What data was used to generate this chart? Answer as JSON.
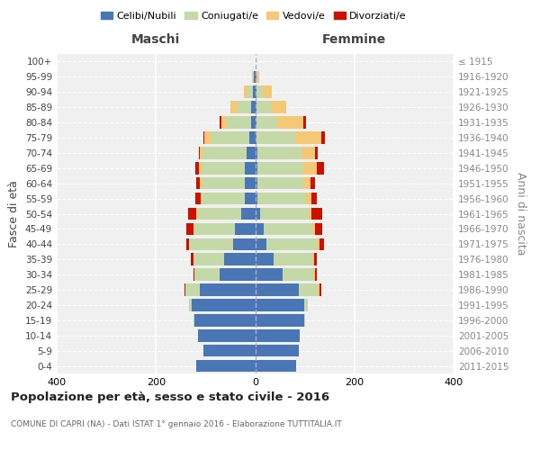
{
  "age_groups": [
    "0-4",
    "5-9",
    "10-14",
    "15-19",
    "20-24",
    "25-29",
    "30-34",
    "35-39",
    "40-44",
    "45-49",
    "50-54",
    "55-59",
    "60-64",
    "65-69",
    "70-74",
    "75-79",
    "80-84",
    "85-89",
    "90-94",
    "95-99",
    "100+"
  ],
  "birth_years": [
    "2011-2015",
    "2006-2010",
    "2001-2005",
    "1996-2000",
    "1991-1995",
    "1986-1990",
    "1981-1985",
    "1976-1980",
    "1971-1975",
    "1966-1970",
    "1961-1965",
    "1956-1960",
    "1951-1955",
    "1946-1950",
    "1941-1945",
    "1936-1940",
    "1931-1935",
    "1926-1930",
    "1921-1925",
    "1916-1920",
    "≤ 1915"
  ],
  "maschi": {
    "celibi": [
      118,
      105,
      115,
      122,
      128,
      112,
      72,
      62,
      45,
      40,
      28,
      20,
      20,
      20,
      18,
      12,
      8,
      8,
      5,
      2,
      0
    ],
    "coniugati": [
      0,
      0,
      0,
      2,
      5,
      28,
      50,
      62,
      88,
      82,
      88,
      88,
      88,
      88,
      88,
      78,
      50,
      28,
      10,
      2,
      0
    ],
    "vedovi": [
      0,
      0,
      0,
      0,
      0,
      0,
      0,
      0,
      0,
      2,
      2,
      2,
      3,
      5,
      5,
      12,
      10,
      14,
      8,
      2,
      0
    ],
    "divorziati": [
      0,
      0,
      0,
      0,
      0,
      3,
      3,
      5,
      5,
      14,
      18,
      10,
      8,
      8,
      3,
      3,
      3,
      0,
      0,
      0,
      0
    ]
  },
  "femmine": {
    "nubili": [
      82,
      88,
      90,
      98,
      98,
      88,
      55,
      38,
      22,
      18,
      10,
      5,
      5,
      5,
      5,
      3,
      3,
      3,
      3,
      2,
      0
    ],
    "coniugate": [
      0,
      0,
      0,
      2,
      8,
      38,
      62,
      78,
      102,
      98,
      98,
      98,
      92,
      92,
      88,
      78,
      42,
      28,
      12,
      2,
      0
    ],
    "vedove": [
      0,
      0,
      0,
      0,
      0,
      3,
      3,
      3,
      5,
      5,
      5,
      10,
      14,
      28,
      28,
      52,
      52,
      32,
      18,
      5,
      0
    ],
    "divorziate": [
      0,
      0,
      0,
      0,
      0,
      5,
      5,
      5,
      10,
      14,
      22,
      12,
      10,
      14,
      5,
      8,
      5,
      0,
      0,
      0,
      0
    ]
  },
  "colors": {
    "celibi": "#4b76b5",
    "coniugati": "#c5d9a8",
    "vedovi": "#f5c878",
    "divorziati": "#cc1100"
  },
  "legend_labels": [
    "Celibi/Nubili",
    "Coniugati/e",
    "Vedovi/e",
    "Divorziati/e"
  ],
  "xlim": 400,
  "title": "Popolazione per età, sesso e stato civile - 2016",
  "subtitle": "COMUNE DI CAPRI (NA) - Dati ISTAT 1° gennaio 2016 - Elaborazione TUTTITALIA.IT",
  "ylabel_left": "Fasce di età",
  "ylabel_right": "Anni di nascita",
  "xlabel_maschi": "Maschi",
  "xlabel_femmine": "Femmine",
  "bg_color": "#f0f0f0"
}
